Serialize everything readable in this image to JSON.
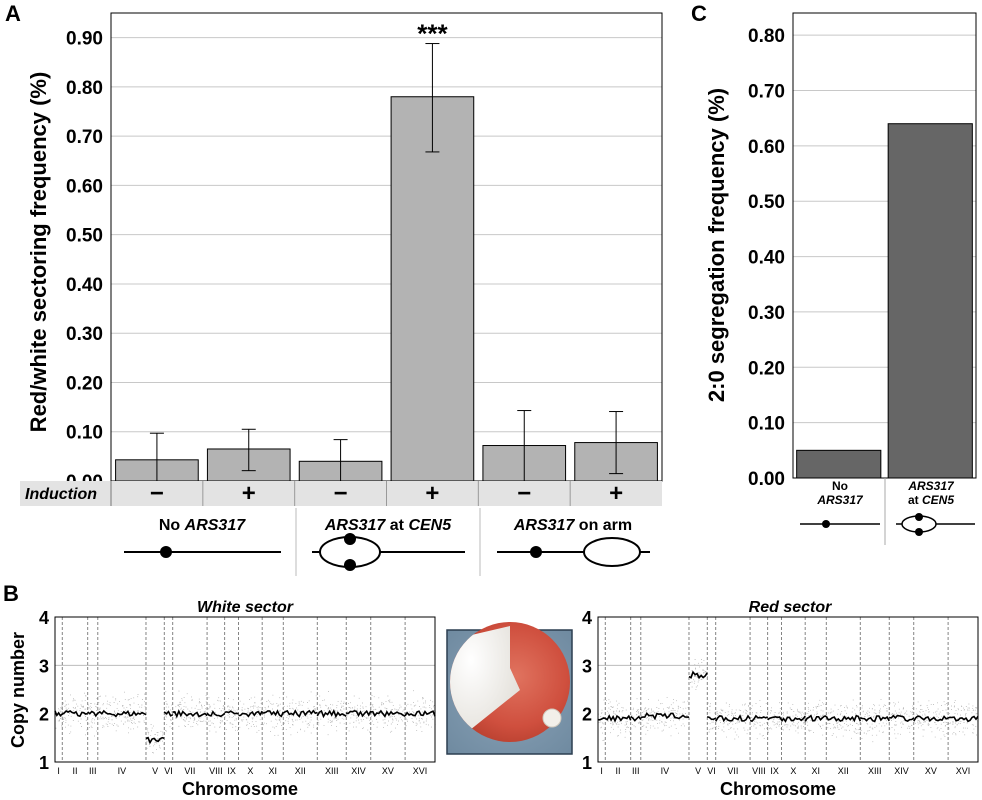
{
  "panels": {
    "A": {
      "letter": "A",
      "chart_data": {
        "type": "bar",
        "ylabel": "Red/white sectoring frequency (%)",
        "ylim": [
          0,
          0.95
        ],
        "yticks": [
          "0.00",
          "0.10",
          "0.20",
          "0.30",
          "0.40",
          "0.50",
          "0.60",
          "0.70",
          "0.80",
          "0.90"
        ],
        "grid": true,
        "categories": [
          "No ARS317 −",
          "No ARS317 +",
          "ARS317 at CEN5 −",
          "ARS317 at CEN5 +",
          "ARS317 on arm −",
          "ARS317 on arm +"
        ],
        "values": [
          0.043,
          0.065,
          0.04,
          0.78,
          0.072,
          0.078
        ],
        "error_low": [
          0.0,
          0.021,
          0.0,
          0.668,
          0.0,
          0.015
        ],
        "error_high": [
          0.097,
          0.105,
          0.084,
          0.888,
          0.143,
          0.141
        ],
        "bar_color": "#b3b3b3",
        "annotation": "***",
        "annotation_index": 3
      },
      "induction_label": "Induction",
      "induction_signs": [
        "−",
        "+",
        "−",
        "+",
        "−",
        "+"
      ],
      "groups": [
        {
          "name": "ARS317",
          "prefix": "No ",
          "suffix": ""
        },
        {
          "name": "ARS317",
          "prefix": "",
          "suffix": " at CEN5"
        },
        {
          "name": "ARS317",
          "prefix": "",
          "suffix": " on arm"
        }
      ],
      "group_labels": {
        "g1_a": "No ",
        "g1_b": "ARS317",
        "g2_a": "ARS317",
        "g2_b": " at ",
        "g2_c": "CEN5",
        "g3_a": "ARS317",
        "g3_b": " on arm"
      }
    },
    "C": {
      "letter": "C",
      "chart_data": {
        "type": "bar",
        "ylabel": "2:0 segregation frequency (%)",
        "ylim": [
          0,
          0.84
        ],
        "yticks": [
          "0.00",
          "0.10",
          "0.20",
          "0.30",
          "0.40",
          "0.50",
          "0.60",
          "0.70",
          "0.80"
        ],
        "grid": true,
        "categories": [
          "No ARS317",
          "ARS317 at CEN5"
        ],
        "values": [
          0.05,
          0.64
        ],
        "bar_color": "#666666"
      },
      "labels": {
        "c1_a": "No",
        "c1_b": "ARS317",
        "c2_a": "ARS317",
        "c2_b": "at ",
        "c2_c": "CEN5"
      }
    },
    "B": {
      "letter": "B",
      "ylabel": "Copy number",
      "xlabel": "Chromosome",
      "yticks": [
        "1",
        "2",
        "3",
        "4"
      ],
      "chromosomes": [
        "I",
        "II",
        "III",
        "IV",
        "V",
        "VI",
        "VII",
        "VIII",
        "IX",
        "X",
        "XI",
        "XII",
        "XIII",
        "XIV",
        "XV",
        "XVI"
      ],
      "white": {
        "title": "White sector",
        "chart_data": {
          "type": "line",
          "ylim": [
            1,
            4
          ],
          "copy_number_by_chromosome": [
            2,
            2,
            2,
            2,
            1.45,
            2,
            2,
            2,
            2,
            2,
            2,
            2,
            2,
            2,
            2,
            2
          ]
        }
      },
      "red": {
        "title": "Red sector",
        "chart_data": {
          "type": "line",
          "ylim": [
            1,
            4
          ],
          "copy_number_by_chromosome": [
            1.9,
            1.9,
            1.9,
            1.95,
            2.8,
            1.9,
            1.9,
            1.9,
            1.9,
            1.9,
            1.9,
            1.9,
            1.9,
            1.9,
            1.9,
            1.9
          ]
        }
      }
    }
  }
}
